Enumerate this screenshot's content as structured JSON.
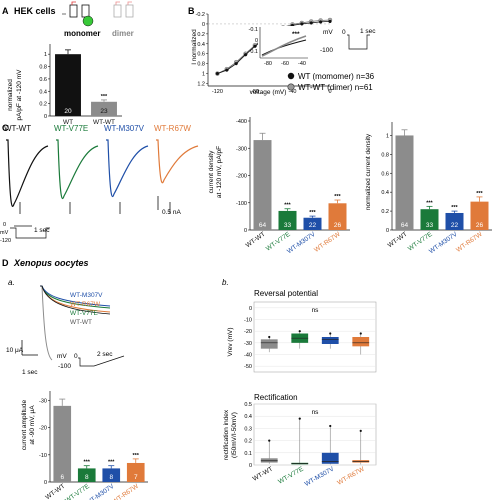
{
  "panelA": {
    "letter": "A",
    "title": "HEK cells",
    "monomer": "monomer",
    "dimer": "dimer",
    "ylabel_1": "normalized",
    "ylabel_2": "pA/pF at -120 mV",
    "sig": "***",
    "ticks": [
      "0",
      "0.2",
      "0.4",
      "0.6",
      "0.8",
      "1"
    ]
  },
  "panelB": {
    "letter": "B",
    "ylabel": "I normalized",
    "xlabel": "voltage (mV)",
    "yticks": [
      "-0.2",
      "0",
      "0.2",
      "0.4",
      "0.6",
      "0.8",
      "1",
      "1.2"
    ],
    "xticks": [
      "-120",
      "-80",
      "-40",
      "0"
    ],
    "inset_yticks": [
      "-0.1",
      "0",
      "0.1"
    ],
    "inset_xticks": [
      "-80",
      "-60",
      "-40"
    ],
    "inset_sig": "***",
    "scale_top": "mV",
    "scale_val": "-100",
    "scale_zero": "0",
    "scale_time": "1 sec",
    "legend": [
      "WT (momomer) n=36",
      "WT-WT (dimer) n=61"
    ]
  },
  "panelC": {
    "letter": "C",
    "trace_labels": [
      "WT-WT",
      "WT-V77E",
      "WT-M307V",
      "WT-R67W"
    ],
    "scale_na": "0.5 nA",
    "scale_sec": "1 sec",
    "proto_zero": "0",
    "proto_neg": "-120",
    "proto_unit": "mV",
    "ylabel1_1": "current density",
    "ylabel1_2": "at -120 mV, pA/pF",
    "ylabel2": "normalized current density",
    "yticks1": [
      "0",
      "-100",
      "-200",
      "-300",
      "-400"
    ],
    "yticks2": [
      "0",
      "0.2",
      "0.4",
      "0.6",
      "0.8",
      "1"
    ],
    "sig": "***"
  },
  "panelD": {
    "letter": "D",
    "title": "Xenopus oocytes",
    "sub_a": "a.",
    "sub_b": "b.",
    "trace_legend": [
      "WT-M307V",
      "WT-R67W",
      "WT-V77E",
      "WT-WT"
    ],
    "scale_ua": "10 μA",
    "scale_sec": "1 sec",
    "proto_unit": "mV",
    "proto_zero": "0",
    "proto_neg": "-100",
    "proto_time": "2 sec",
    "ylabel_1": "current amplitude",
    "ylabel_2": "at -90 mV, μA",
    "yticks": [
      "0",
      "-10",
      "-20",
      "-30"
    ],
    "sig": "***",
    "rev_title": "Reversal potential",
    "rev_ylabel": "Vrev (mV)",
    "rev_yticks": [
      "-50",
      "-40",
      "-30",
      "-20",
      "-10",
      "0"
    ],
    "rect_title": "Rectification",
    "rect_ylabel_1": "rectification index",
    "rect_ylabel_2": "(I50mV/I-50mV)",
    "rect_yticks": [
      "0",
      "0.1",
      "0.2",
      "0.3",
      "0.4",
      "0.5"
    ],
    "ns": "ns",
    "groups": [
      "WT-WT",
      "WT-V77E",
      "WT-M307V",
      "WT-R67W"
    ]
  },
  "colors": {
    "wt": "#8c8c8c",
    "v77e": "#1a7a3a",
    "m307v": "#1f4fa8",
    "r67w": "#e07a3a",
    "black": "#111111"
  },
  "chart_data": [
    {
      "id": "A",
      "type": "bar",
      "categories": [
        "WT",
        "WT-WT"
      ],
      "values": [
        1.0,
        0.23
      ],
      "errors": [
        0.07,
        0.03
      ],
      "n": [
        "20",
        "23"
      ],
      "colors": [
        "#111111",
        "#8c8c8c"
      ],
      "ylabel": "normalized pA/pF at -120 mV",
      "ylim": [
        0,
        1.1
      ]
    },
    {
      "id": "B",
      "type": "line",
      "xlabel": "voltage (mV)",
      "ylabel": "I normalized",
      "xlim": [
        -130,
        0
      ],
      "ylim": [
        -0.2,
        1.25
      ],
      "series": [
        {
          "name": "WT (momomer) n=36",
          "x": [
            -120,
            -110,
            -100,
            -90,
            -80,
            -70,
            -60,
            -50,
            -40,
            -30,
            -20,
            -10,
            0
          ],
          "y": [
            1.0,
            0.93,
            0.8,
            0.62,
            0.45,
            0.3,
            0.18,
            0.09,
            0.03,
            0.0,
            -0.02,
            -0.04,
            -0.05
          ]
        },
        {
          "name": "WT-WT (dimer) n=61",
          "x": [
            -120,
            -110,
            -100,
            -90,
            -80,
            -70,
            -60,
            -50,
            -40,
            -30,
            -20,
            -10,
            0
          ],
          "y": [
            1.0,
            0.91,
            0.77,
            0.6,
            0.43,
            0.28,
            0.16,
            0.07,
            0.01,
            -0.02,
            -0.05,
            -0.07,
            -0.08
          ]
        }
      ]
    },
    {
      "id": "C-left",
      "type": "bar",
      "categories": [
        "WT-WT",
        "WT-V77E",
        "WT-M307V",
        "WT-R67W"
      ],
      "values": [
        -330,
        -70,
        -45,
        -98
      ],
      "errors": [
        25,
        8,
        6,
        12
      ],
      "n": [
        "64",
        "33",
        "22",
        "26"
      ],
      "colors": [
        "#8c8c8c",
        "#1a7a3a",
        "#1f4fa8",
        "#e07a3a"
      ],
      "ylabel": "current density at -120 mV, pA/pF",
      "ylim": [
        0,
        -400
      ]
    },
    {
      "id": "C-right",
      "type": "bar",
      "categories": [
        "WT-WT",
        "WT-V77E",
        "WT-M307V",
        "WT-R67W"
      ],
      "values": [
        1.0,
        0.22,
        0.18,
        0.3
      ],
      "errors": [
        0.06,
        0.03,
        0.02,
        0.05
      ],
      "n": [
        "64",
        "33",
        "22",
        "26"
      ],
      "colors": [
        "#8c8c8c",
        "#1a7a3a",
        "#1f4fa8",
        "#e07a3a"
      ],
      "ylabel": "normalized current density",
      "ylim": [
        0,
        1.1
      ]
    },
    {
      "id": "D-a",
      "type": "bar",
      "categories": [
        "WT-WT",
        "WT-V77E",
        "WT-M307V",
        "WT-R67W"
      ],
      "values": [
        -28,
        -5,
        -5,
        -7
      ],
      "errors": [
        2.5,
        1,
        1,
        1.5
      ],
      "n": [
        "6",
        "8",
        "8",
        "7"
      ],
      "colors": [
        "#8c8c8c",
        "#1a7a3a",
        "#1f4fa8",
        "#e07a3a"
      ],
      "ylabel": "current amplitude at -90 mV, μA",
      "ylim": [
        0,
        -32
      ]
    },
    {
      "id": "D-b-rev",
      "type": "box",
      "title": "Reversal potential",
      "ylabel": "Vrev (mV)",
      "ylim": [
        -55,
        5
      ],
      "categories": [
        "WT-WT",
        "WT-V77E",
        "WT-M307V",
        "WT-R67W"
      ],
      "boxes": [
        {
          "min": -38,
          "q1": -35,
          "median": -30,
          "q3": -27,
          "max": -25
        },
        {
          "min": -35,
          "q1": -30,
          "median": -26,
          "q3": -22,
          "max": -20
        },
        {
          "min": -35,
          "q1": -31,
          "median": -27,
          "q3": -25,
          "max": -22
        },
        {
          "min": -40,
          "q1": -33,
          "median": -30,
          "q3": -25,
          "max": -22
        }
      ],
      "colors": [
        "#8c8c8c",
        "#1a7a3a",
        "#1f4fa8",
        "#e07a3a"
      ]
    },
    {
      "id": "D-b-rect",
      "type": "box",
      "title": "Rectification",
      "ylabel": "rectification index (I50mV/I-50mV)",
      "ylim": [
        0,
        0.5
      ],
      "categories": [
        "WT-WT",
        "WT-V77E",
        "WT-M307V",
        "WT-R67W"
      ],
      "boxes": [
        {
          "min": 0.01,
          "q1": 0.02,
          "median": 0.035,
          "q3": 0.055,
          "max": 0.2
        },
        {
          "min": 0.005,
          "q1": 0.008,
          "median": 0.012,
          "q3": 0.018,
          "max": 0.38
        },
        {
          "min": 0.005,
          "q1": 0.01,
          "median": 0.03,
          "q3": 0.1,
          "max": 0.32
        },
        {
          "min": 0.005,
          "q1": 0.02,
          "median": 0.03,
          "q3": 0.04,
          "max": 0.28
        }
      ],
      "colors": [
        "#8c8c8c",
        "#1a7a3a",
        "#1f4fa8",
        "#e07a3a"
      ]
    }
  ]
}
